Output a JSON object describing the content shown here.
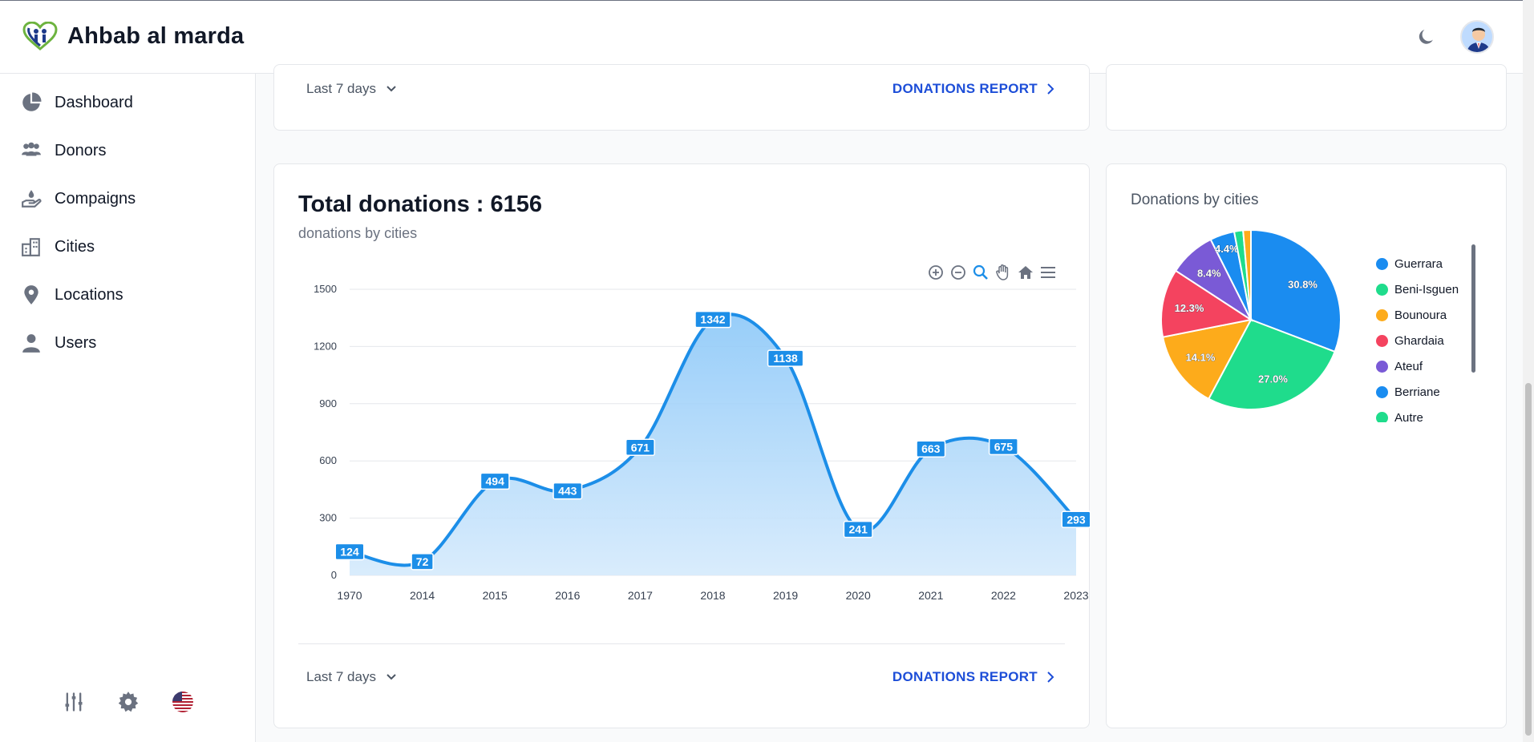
{
  "app": {
    "title": "Ahbab al marda"
  },
  "sidebar": {
    "items": [
      {
        "label": "Dashboard",
        "icon": "pie-chart-icon"
      },
      {
        "label": "Donors",
        "icon": "users-group-icon"
      },
      {
        "label": "Compaigns",
        "icon": "hand-donate-icon"
      },
      {
        "label": "Cities",
        "icon": "buildings-icon"
      },
      {
        "label": "Locations",
        "icon": "map-pin-icon"
      },
      {
        "label": "Users",
        "icon": "user-icon"
      }
    ],
    "bottom_icons": [
      "sliders-icon",
      "gear-icon",
      "us-flag-icon"
    ]
  },
  "top_card": {
    "range_label": "Last 7 days",
    "report_label": "DONATIONS REPORT"
  },
  "main_card": {
    "title": "Total donations : 6156",
    "subtitle": "donations by cities",
    "range_label": "Last 7 days",
    "report_label": "DONATIONS REPORT"
  },
  "pie_card": {
    "title": "Donations by cities"
  },
  "colors": {
    "accent": "#1c8ee8",
    "link": "#1d4ed8"
  },
  "chart_data": [
    {
      "type": "area",
      "title": "",
      "xlabel": "",
      "ylabel": "",
      "x": [
        "1970",
        "2014",
        "2015",
        "2016",
        "2017",
        "2018",
        "2019",
        "2020",
        "2021",
        "2022",
        "2023"
      ],
      "values": [
        124,
        72,
        494,
        443,
        671,
        1342,
        1138,
        241,
        663,
        675,
        293
      ],
      "ylim": [
        0,
        1500
      ],
      "yticks": [
        0,
        300,
        600,
        900,
        1200,
        1500
      ],
      "grid": true,
      "data_labels": true,
      "color": "#1c8ee8"
    },
    {
      "type": "pie",
      "title": "Donations by cities",
      "slices": [
        {
          "label": "Guerrara",
          "value": 30.8,
          "color": "#1a8cf0",
          "display": "30.8%"
        },
        {
          "label": "Beni-Isguen",
          "value": 27.0,
          "color": "#1fdc8c",
          "display": "27.0%"
        },
        {
          "label": "Bounoura",
          "value": 14.1,
          "color": "#fdab1b",
          "display": "14.1%"
        },
        {
          "label": "Ghardaia",
          "value": 12.3,
          "color": "#f4435f",
          "display": "12.3%"
        },
        {
          "label": "Ateuf",
          "value": 8.4,
          "color": "#7a5ad6",
          "display": "8.4%"
        },
        {
          "label": "Berriane",
          "value": 4.4,
          "color": "#1a8cf0",
          "display": "4.4%"
        },
        {
          "label": "Autre",
          "value": 1.6,
          "color": "#1fdc8c",
          "display": ""
        },
        {
          "label": "",
          "value": 1.4,
          "color": "#fdab1b",
          "display": ""
        }
      ],
      "legend_visible": [
        "Guerrara",
        "Beni-Isguen",
        "Bounoura",
        "Ghardaia",
        "Ateuf",
        "Berriane",
        "Autre"
      ],
      "legend_position": "right"
    }
  ]
}
